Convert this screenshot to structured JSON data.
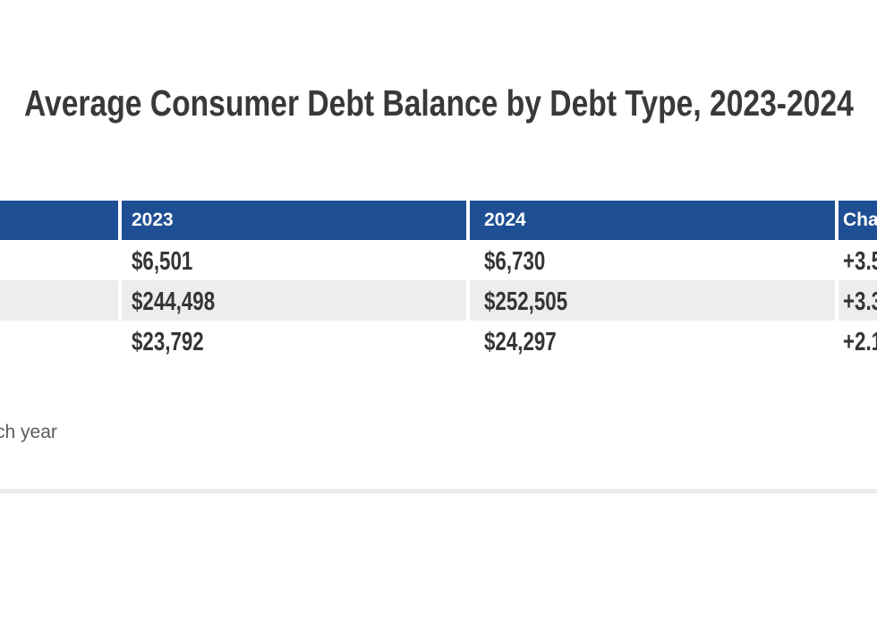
{
  "title": {
    "text": "Average Consumer Debt Balance by Debt Type, 2023-2024",
    "color": "#37393b"
  },
  "table": {
    "header_bg": "#1e4e93",
    "header_text_color": "#ffffff",
    "row_alt_bg": "#ededed",
    "body_text_color": "#333537",
    "columns": {
      "col0": "",
      "col1": "2023",
      "col2": "2024",
      "col3": "Cha"
    },
    "rows": [
      {
        "v2023": "$6,501",
        "v2024": "$6,730",
        "change": "+3.5"
      },
      {
        "v2023": "$244,498",
        "v2024": "$252,505",
        "change": "+3.3"
      },
      {
        "v2023": "$23,792",
        "v2024": "$24,297",
        "change": "+2.1"
      }
    ]
  },
  "source_note": {
    "text_visible": "ch year",
    "color": "#595b5d"
  },
  "divider_color": "#ececec",
  "chart_data": {
    "type": "table",
    "title": "Average Consumer Debt Balance by Debt Type, 2023-2024",
    "columns": [
      "2023",
      "2024",
      "Cha"
    ],
    "rows": [
      [
        "$6,501",
        "$6,730",
        "+3.5"
      ],
      [
        "$244,498",
        "$252,505",
        "+3.3"
      ],
      [
        "$23,792",
        "$24,297",
        "+2.1"
      ]
    ],
    "notes": "Row label column and Change column are clipped by the viewport edges; source note clipped to 'ch year'",
    "header_color": "#1e4e93",
    "alt_row_color": "#ededed"
  }
}
